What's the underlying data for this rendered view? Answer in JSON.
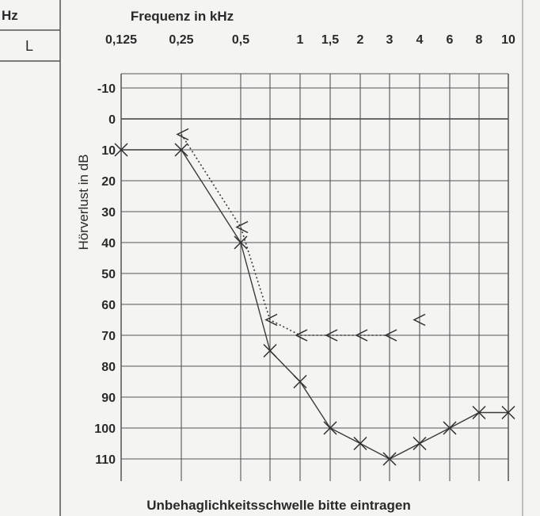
{
  "left_panel": {
    "header": "Hz",
    "ear_label": "L"
  },
  "chart_data": {
    "type": "line",
    "title": "Frequenz in kHz",
    "xlabel": "Frequenz in kHz",
    "ylabel": "Hörverlust in dB",
    "footer": "Unbehaglichkeitsschwelle bitte eintragen",
    "x_ticks": [
      "0,125",
      "0,25",
      "0,5",
      "1",
      "1,5",
      "2",
      "3",
      "4",
      "6",
      "8",
      "10"
    ],
    "y_ticks": [
      "-10",
      "0",
      "10",
      "20",
      "30",
      "40",
      "50",
      "60",
      "70",
      "80",
      "90",
      "100",
      "110"
    ],
    "ylim": [
      -10,
      110
    ],
    "y_inverted": true,
    "grid": true,
    "series": [
      {
        "style": "solid",
        "marker": "x",
        "color": "#3a3a3a",
        "points": [
          {
            "x": "0,125",
            "y": 10
          },
          {
            "x": "0,25",
            "y": 10
          },
          {
            "x": "0,5",
            "y": 40
          },
          {
            "x": "0,75",
            "y": 75
          },
          {
            "x": "1",
            "y": 85
          },
          {
            "x": "1,5",
            "y": 100
          },
          {
            "x": "2",
            "y": 105
          },
          {
            "x": "3",
            "y": 110
          },
          {
            "x": "4",
            "y": 105
          },
          {
            "x": "6",
            "y": 100
          },
          {
            "x": "8",
            "y": 95
          },
          {
            "x": "10",
            "y": 95
          }
        ]
      },
      {
        "style": "dotted",
        "marker": "<",
        "color": "#3a3a3a",
        "points": [
          {
            "x": "0,25",
            "y": 5
          },
          {
            "x": "0,5",
            "y": 35
          },
          {
            "x": "0,75",
            "y": 65
          },
          {
            "x": "1",
            "y": 70
          },
          {
            "x": "1,5",
            "y": 70
          },
          {
            "x": "2",
            "y": 70
          },
          {
            "x": "3",
            "y": 70
          }
        ]
      }
    ],
    "extra_markers": [
      {
        "x": "4",
        "y": 65,
        "marker": "<"
      }
    ]
  }
}
